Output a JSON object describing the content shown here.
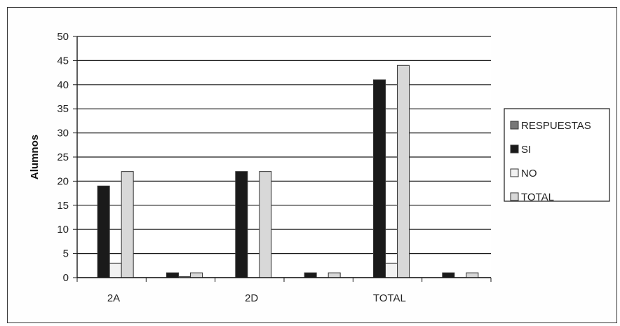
{
  "chart_data": {
    "type": "bar",
    "title": "",
    "xlabel": "",
    "ylabel": "Alumnos",
    "ylim": [
      0,
      50
    ],
    "yticks": [
      0,
      5,
      10,
      15,
      20,
      25,
      30,
      35,
      40,
      45,
      50
    ],
    "categories": [
      "2A",
      "",
      "2D",
      "",
      "TOTAL",
      ""
    ],
    "series": [
      {
        "name": "RESPUESTAS",
        "values": [
          0,
          0,
          0,
          0,
          0,
          0
        ],
        "color": "#777777"
      },
      {
        "name": "SI",
        "values": [
          19,
          1,
          22,
          1,
          41,
          1
        ],
        "color": "#1a1a1a"
      },
      {
        "name": "NO",
        "values": [
          3,
          0.2,
          0,
          0,
          3,
          0
        ],
        "color": "#f2f2f2"
      },
      {
        "name": "TOTAL",
        "values": [
          22,
          1,
          22,
          1,
          44,
          1
        ],
        "color": "#d8d8d8"
      }
    ],
    "grid": true,
    "legend_position": "right"
  }
}
